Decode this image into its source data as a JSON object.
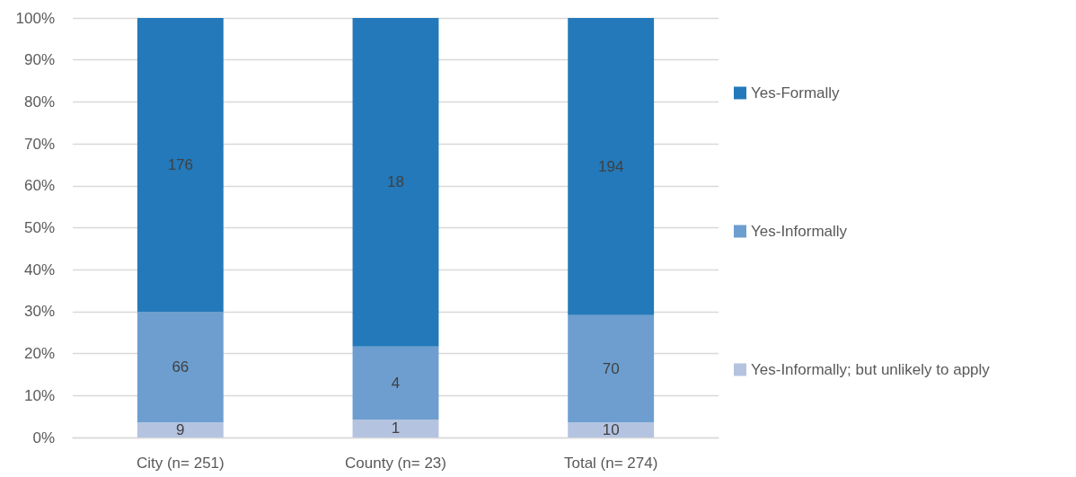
{
  "chart_data": {
    "type": "bar",
    "stacked": true,
    "categories": [
      "City (n= 251)",
      "County (n= 23)",
      "Total (n= 274)"
    ],
    "series": [
      {
        "name": "Yes-Informally; but unlikely to apply",
        "color": "#b4c3e0",
        "values": [
          3.6,
          4.3,
          3.6
        ]
      },
      {
        "name": "Yes-Informally",
        "color": "#6d9ecf",
        "values": [
          26.3,
          17.4,
          25.6
        ]
      },
      {
        "name": "Yes-Formally",
        "color": "#2379ba",
        "values": [
          70.1,
          78.3,
          70.8
        ]
      }
    ],
    "annotations": [
      "9",
      "66",
      "176",
      "1",
      "4",
      "18",
      "10",
      "70",
      "194"
    ],
    "ylim": [
      0,
      100
    ],
    "yticks": [
      {
        "value": 0,
        "label": "0%"
      },
      {
        "value": 10,
        "label": "10%"
      },
      {
        "value": 20,
        "label": "20%"
      },
      {
        "value": 30,
        "label": "30%"
      },
      {
        "value": 40,
        "label": "40%"
      },
      {
        "value": 50,
        "label": "50%"
      },
      {
        "value": 60,
        "label": "60%"
      },
      {
        "value": 70,
        "label": "70%"
      },
      {
        "value": 80,
        "label": "80%"
      },
      {
        "value": 90,
        "label": "90%"
      },
      {
        "value": 100,
        "label": "100%"
      }
    ],
    "grid": "y",
    "legend": "right"
  }
}
